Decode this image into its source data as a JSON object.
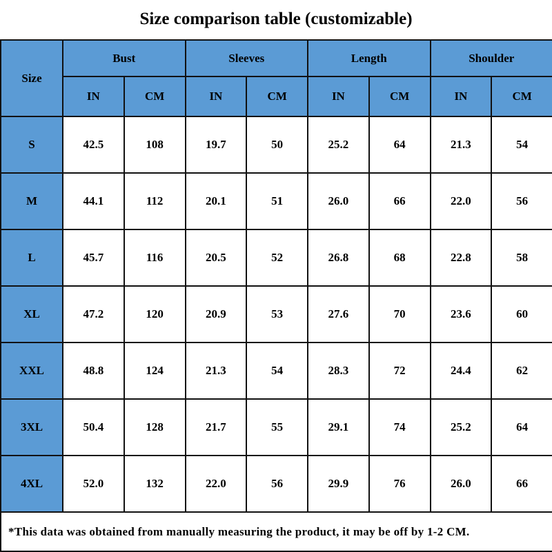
{
  "title": "Size comparison table (customizable)",
  "colors": {
    "header_bg": "#5b9bd5",
    "cell_bg": "#ffffff",
    "border": "#111111"
  },
  "table": {
    "size_header": "Size",
    "groups": [
      "Bust",
      "Sleeves",
      "Length",
      "Shoulder"
    ],
    "units": [
      "IN",
      "CM"
    ],
    "rows": [
      {
        "size": "S",
        "values": [
          "42.5",
          "108",
          "19.7",
          "50",
          "25.2",
          "64",
          "21.3",
          "54"
        ]
      },
      {
        "size": "M",
        "values": [
          "44.1",
          "112",
          "20.1",
          "51",
          "26.0",
          "66",
          "22.0",
          "56"
        ]
      },
      {
        "size": "L",
        "values": [
          "45.7",
          "116",
          "20.5",
          "52",
          "26.8",
          "68",
          "22.8",
          "58"
        ]
      },
      {
        "size": "XL",
        "values": [
          "47.2",
          "120",
          "20.9",
          "53",
          "27.6",
          "70",
          "23.6",
          "60"
        ]
      },
      {
        "size": "XXL",
        "values": [
          "48.8",
          "124",
          "21.3",
          "54",
          "28.3",
          "72",
          "24.4",
          "62"
        ]
      },
      {
        "size": "3XL",
        "values": [
          "50.4",
          "128",
          "21.7",
          "55",
          "29.1",
          "74",
          "25.2",
          "64"
        ]
      },
      {
        "size": "4XL",
        "values": [
          "52.0",
          "132",
          "22.0",
          "56",
          "29.9",
          "76",
          "26.0",
          "66"
        ]
      }
    ],
    "footnote": "*This data was obtained from manually measuring the product, it may be off by 1-2 CM."
  }
}
